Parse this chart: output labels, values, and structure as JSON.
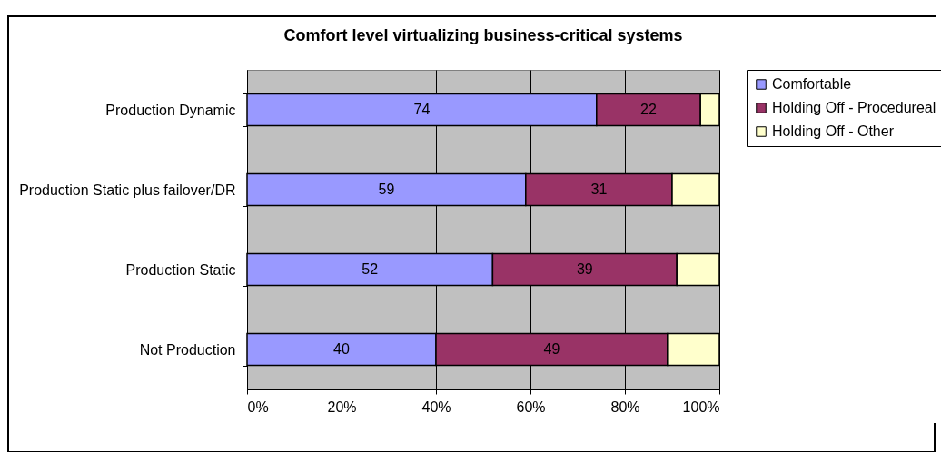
{
  "chart_data": {
    "type": "bar",
    "orientation": "horizontal",
    "stacked": true,
    "title": "Comfort level virtualizing business-critical systems",
    "categories": [
      "Production Dynamic",
      "Production Static plus failover/DR",
      "Production Static",
      "Not Production"
    ],
    "series": [
      {
        "name": "Comfortable",
        "color": "#9999ff",
        "values": [
          74,
          59,
          52,
          40
        ],
        "value_labels": [
          "74",
          "59",
          "52",
          "40"
        ]
      },
      {
        "name": "Holding Off - Procedureal",
        "color": "#993366",
        "values": [
          22,
          31,
          39,
          49
        ],
        "value_labels": [
          "22",
          "31",
          "39",
          "49"
        ]
      },
      {
        "name": "Holding Off - Other",
        "color": "#ffffcc",
        "values": [
          4,
          10,
          9,
          11
        ],
        "value_labels": [
          null,
          null,
          null,
          null
        ]
      }
    ],
    "xlim": [
      0,
      100
    ],
    "xticks": [
      {
        "value": 0,
        "label": "0%"
      },
      {
        "value": 20,
        "label": "20%"
      },
      {
        "value": 40,
        "label": "40%"
      },
      {
        "value": 60,
        "label": "60%"
      },
      {
        "value": 80,
        "label": "80%"
      },
      {
        "value": 100,
        "label": "100%"
      }
    ],
    "grid": "x",
    "legend": "right"
  }
}
